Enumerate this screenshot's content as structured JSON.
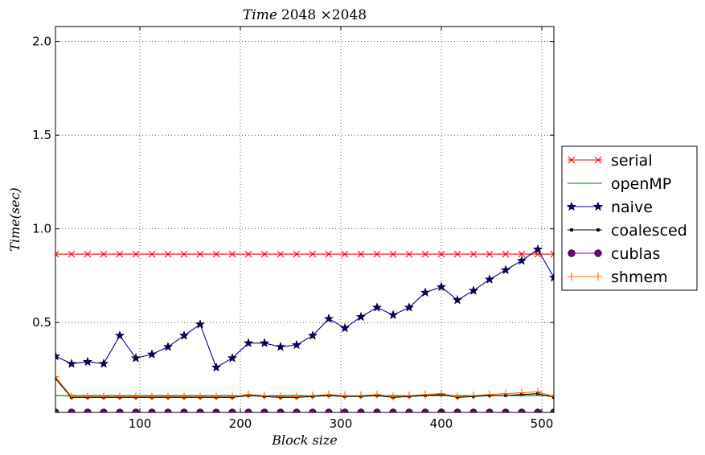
{
  "chart_data": {
    "type": "line",
    "title_italic": "Time",
    "title_rest": "2048 ×2048",
    "xlabel": "Block size",
    "ylabel": "Time(sec)",
    "xlim": [
      16,
      512
    ],
    "ylim": [
      0.02,
      2.08
    ],
    "xticks": [
      100,
      200,
      300,
      400,
      500
    ],
    "yticks": [
      0.5,
      1.0,
      1.5,
      2.0
    ],
    "ytick_labels": [
      "0.5",
      "1.0",
      "1.5",
      "2.0"
    ],
    "grid": true,
    "legend_position": "outside-right",
    "x": [
      16,
      32,
      48,
      64,
      80,
      96,
      112,
      128,
      144,
      160,
      176,
      192,
      208,
      224,
      240,
      256,
      272,
      288,
      304,
      320,
      336,
      352,
      368,
      384,
      400,
      416,
      432,
      448,
      464,
      480,
      496,
      512
    ],
    "series": [
      {
        "name": "serial",
        "color": "#ff0000",
        "marker": "x",
        "values": [
          0.865,
          0.865,
          0.865,
          0.865,
          0.865,
          0.865,
          0.865,
          0.865,
          0.865,
          0.865,
          0.865,
          0.865,
          0.865,
          0.865,
          0.865,
          0.865,
          0.865,
          0.865,
          0.865,
          0.865,
          0.865,
          0.865,
          0.865,
          0.865,
          0.865,
          0.865,
          0.865,
          0.865,
          0.865,
          0.865,
          0.865,
          0.865
        ]
      },
      {
        "name": "openMP",
        "color": "#008000",
        "marker": "none",
        "values": [
          0.11,
          0.11,
          0.11,
          0.11,
          0.11,
          0.11,
          0.11,
          0.11,
          0.11,
          0.11,
          0.11,
          0.11,
          0.11,
          0.11,
          0.11,
          0.11,
          0.11,
          0.11,
          0.11,
          0.11,
          0.11,
          0.11,
          0.11,
          0.11,
          0.11,
          0.11,
          0.11,
          0.11,
          0.11,
          0.11,
          0.11,
          0.11
        ]
      },
      {
        "name": "naive",
        "color": "#000080",
        "marker": "star",
        "values": [
          0.32,
          0.28,
          0.29,
          0.28,
          0.43,
          0.31,
          0.33,
          0.37,
          0.43,
          0.49,
          0.26,
          0.31,
          0.39,
          0.39,
          0.37,
          0.38,
          0.43,
          0.52,
          0.47,
          0.53,
          0.58,
          0.54,
          0.58,
          0.66,
          0.69,
          0.62,
          0.67,
          0.73,
          0.78,
          0.83,
          0.89,
          0.74
        ]
      },
      {
        "name": "coalesced",
        "color": "#000000",
        "marker": "dot",
        "values": [
          0.2,
          0.1,
          0.1,
          0.1,
          0.1,
          0.1,
          0.1,
          0.1,
          0.1,
          0.1,
          0.1,
          0.1,
          0.11,
          0.105,
          0.1,
          0.1,
          0.105,
          0.11,
          0.105,
          0.105,
          0.11,
          0.1,
          0.105,
          0.11,
          0.115,
          0.1,
          0.105,
          0.11,
          0.11,
          0.115,
          0.12,
          0.1
        ]
      },
      {
        "name": "cublas",
        "color": "#800080",
        "marker": "circle",
        "values": [
          0.02,
          0.02,
          0.02,
          0.02,
          0.02,
          0.02,
          0.02,
          0.02,
          0.02,
          0.02,
          0.02,
          0.02,
          0.02,
          0.02,
          0.02,
          0.02,
          0.02,
          0.02,
          0.02,
          0.02,
          0.02,
          0.02,
          0.02,
          0.02,
          0.02,
          0.02,
          0.02,
          0.02,
          0.02,
          0.02,
          0.02,
          0.02
        ]
      },
      {
        "name": "shmem",
        "color": "#ff6600",
        "marker": "plus",
        "values": [
          0.21,
          0.105,
          0.105,
          0.105,
          0.105,
          0.105,
          0.105,
          0.105,
          0.105,
          0.105,
          0.105,
          0.105,
          0.115,
          0.11,
          0.105,
          0.105,
          0.11,
          0.115,
          0.11,
          0.11,
          0.115,
          0.105,
          0.11,
          0.115,
          0.12,
          0.105,
          0.11,
          0.115,
          0.12,
          0.125,
          0.13,
          0.105
        ]
      }
    ]
  }
}
